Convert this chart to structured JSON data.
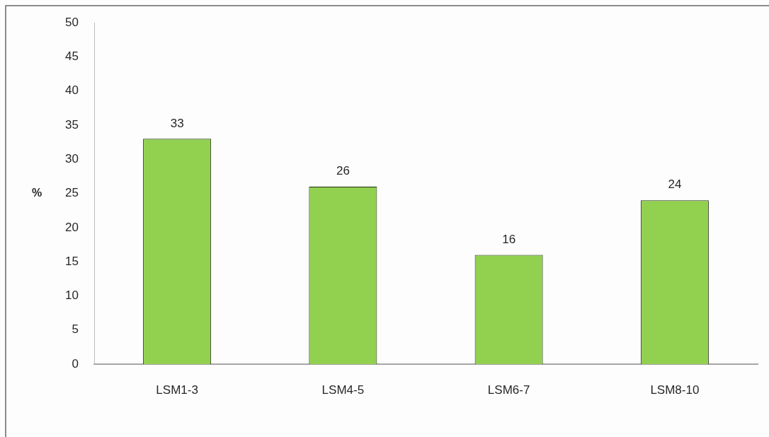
{
  "chart_data": {
    "type": "bar",
    "ylabel": "%",
    "categories": [
      "LSM1-3",
      "LSM4-5",
      "LSM6-7",
      "LSM8-10"
    ],
    "values": [
      33,
      26,
      16,
      24
    ],
    "color": "#92d050",
    "ylim": [
      0,
      50
    ],
    "yticks": [
      0,
      5,
      10,
      15,
      20,
      25,
      30,
      35,
      40,
      45,
      50
    ],
    "grid": false,
    "legend": false,
    "data_labels": true
  }
}
